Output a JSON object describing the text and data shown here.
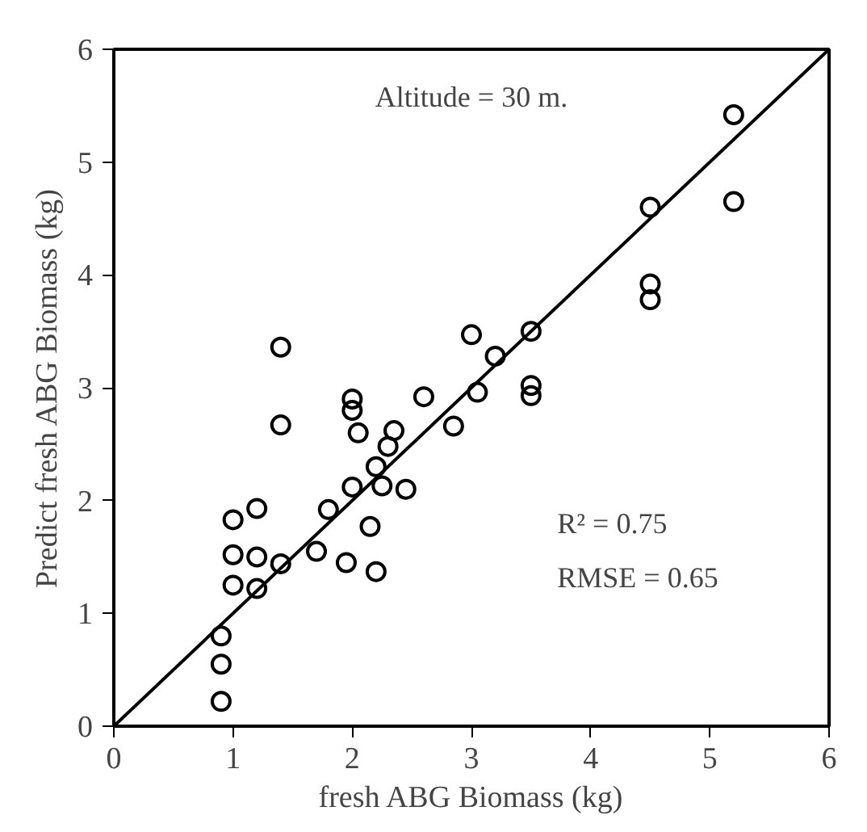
{
  "chart_data": {
    "type": "scatter",
    "xlabel": "fresh ABG Biomass (kg)",
    "ylabel": "Predict fresh ABG Biomass (kg)",
    "xlim": [
      0,
      6
    ],
    "ylim": [
      0,
      6
    ],
    "xticks": [
      0,
      1,
      2,
      3,
      4,
      5,
      6
    ],
    "yticks": [
      0,
      1,
      2,
      3,
      4,
      5,
      6
    ],
    "grid": false,
    "annotations": [
      "Altitude = 30 m.",
      "R² = 0.75",
      "RMSE = 0.65"
    ],
    "series": [
      {
        "marker": "circle",
        "color": "#000000",
        "x": [
          0.9,
          0.9,
          0.9,
          1.0,
          1.0,
          1.0,
          1.2,
          1.2,
          1.2,
          1.4,
          1.4,
          1.4,
          1.7,
          1.8,
          1.95,
          2.0,
          2.0,
          2.0,
          2.05,
          2.15,
          2.2,
          2.2,
          2.25,
          2.3,
          2.35,
          2.45,
          2.6,
          2.85,
          3.0,
          3.05,
          3.2,
          3.5,
          3.5,
          3.5,
          4.5,
          4.5,
          4.5,
          5.2,
          5.2
        ],
        "values": [
          0.22,
          0.55,
          0.8,
          1.25,
          1.52,
          1.83,
          1.22,
          1.5,
          1.93,
          1.44,
          2.67,
          3.36,
          1.55,
          1.92,
          1.45,
          2.12,
          2.8,
          2.9,
          2.6,
          1.77,
          1.37,
          2.3,
          2.13,
          2.48,
          2.62,
          2.1,
          2.92,
          2.66,
          3.47,
          2.96,
          3.28,
          3.5,
          2.93,
          3.02,
          4.6,
          3.92,
          3.78,
          5.42,
          4.65
        ]
      },
      {
        "type": "line",
        "color": "#000000",
        "x": [
          0,
          6
        ],
        "values": [
          0,
          6
        ],
        "line_style": "solid"
      }
    ]
  }
}
